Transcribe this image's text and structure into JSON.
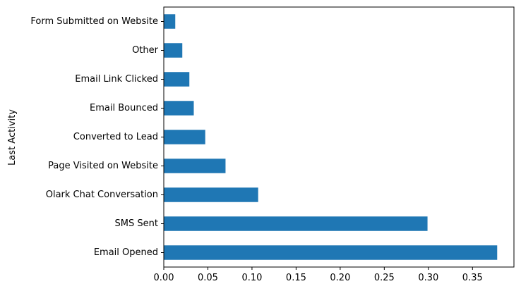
{
  "chart_data": {
    "type": "bar",
    "orientation": "horizontal",
    "title": "",
    "xlabel": "",
    "ylabel": "Last Activity",
    "categories": [
      "Email Opened",
      "SMS Sent",
      "Olark Chat Conversation",
      "Page Visited on Website",
      "Converted to Lead",
      "Email Bounced",
      "Email Link Clicked",
      "Other",
      "Form Submitted on Website"
    ],
    "values": [
      0.378,
      0.299,
      0.107,
      0.07,
      0.047,
      0.034,
      0.029,
      0.021,
      0.013
    ],
    "xticks": [
      "0.00",
      "0.05",
      "0.10",
      "0.15",
      "0.20",
      "0.25",
      "0.30",
      "0.35"
    ],
    "xlim": [
      0,
      0.397
    ],
    "grid": false,
    "bar_color": "#1f77b4"
  }
}
